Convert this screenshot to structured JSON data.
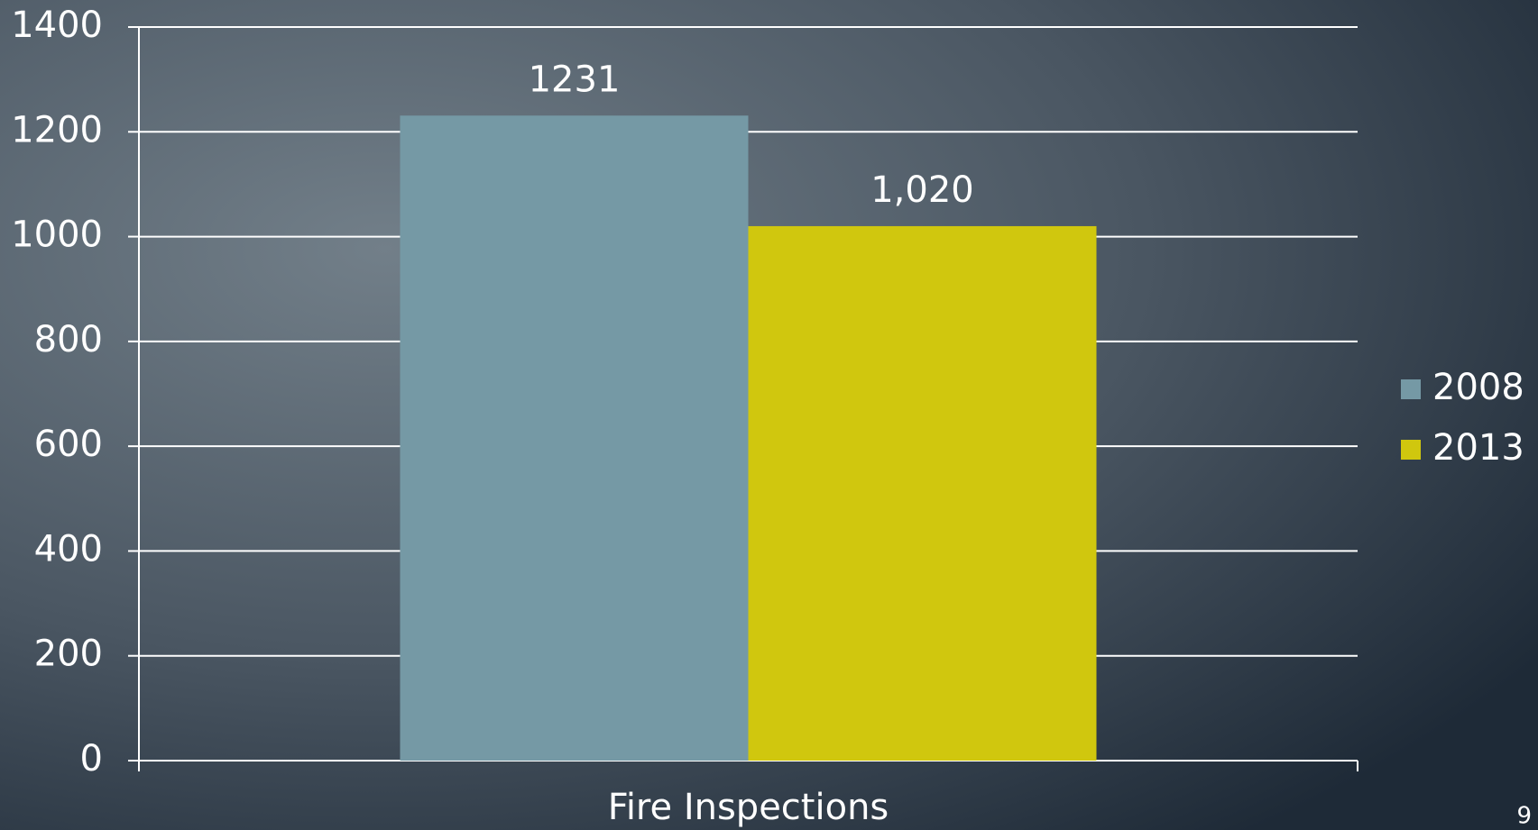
{
  "chart_data": {
    "type": "bar",
    "categories": [
      "Fire Inspections"
    ],
    "series": [
      {
        "name": "2008",
        "color": "#7599a5",
        "values": [
          1231
        ],
        "value_labels": [
          "1231"
        ]
      },
      {
        "name": "2013",
        "color": "#d0c70e",
        "values": [
          1020
        ],
        "value_labels": [
          "1,020"
        ]
      }
    ],
    "ylim": [
      0,
      1400
    ],
    "yticks": [
      0,
      200,
      400,
      600,
      800,
      1000,
      1200,
      1400
    ],
    "grid": true,
    "legend": "right"
  },
  "page_number": "9"
}
